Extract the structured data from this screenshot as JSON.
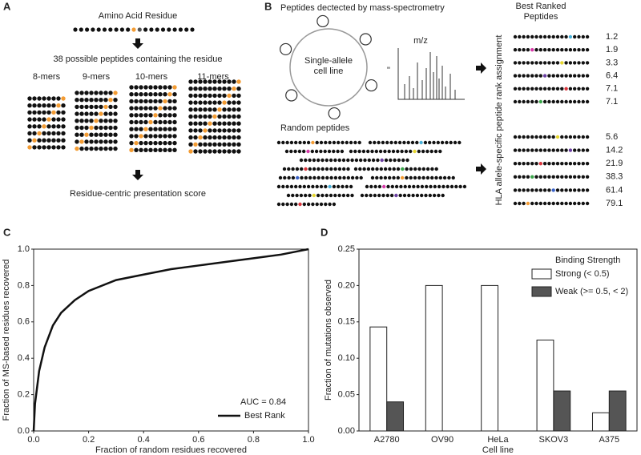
{
  "diagram": {
    "panel_a": {
      "label": "A",
      "residue_title": "Amino Acid Residue",
      "peptides_title": "38 possible peptides containing the residue",
      "mers": [
        "8-mers",
        "9-mers",
        "10-mers",
        "11-mers"
      ],
      "score_title": "Residue-centric presentation score"
    },
    "panel_b": {
      "label": "B",
      "ms_title": "Peptides dectected by mass-spectrometry",
      "cell_line": "Single-allele cell line",
      "axis_label": "m/z",
      "ranked_title": "Best Ranked Peptides",
      "rank_axis": "HLA allele-specific peptide rank assignment",
      "random_title": "Random peptides",
      "ms_ranks": [
        1.2,
        1.9,
        3.3,
        6.4,
        7.1,
        7.1
      ],
      "random_ranks": [
        5.6,
        14.2,
        21.9,
        38.3,
        61.4,
        79.1
      ]
    }
  },
  "chart_data": [
    {
      "type": "line",
      "panel_label": "C",
      "xlabel": "Fraction of random residues recovered",
      "ylabel": "Fraction of MS-based residues recovered",
      "annotation": "AUC = 0.84",
      "x": [
        0,
        0.005,
        0.02,
        0.04,
        0.07,
        0.1,
        0.15,
        0.2,
        0.3,
        0.4,
        0.5,
        0.6,
        0.7,
        0.8,
        0.9,
        1.0
      ],
      "series": [
        {
          "name": "Best Rank",
          "color": "#111111",
          "values": [
            0,
            0.15,
            0.33,
            0.46,
            0.58,
            0.65,
            0.72,
            0.77,
            0.83,
            0.86,
            0.89,
            0.91,
            0.93,
            0.95,
            0.97,
            1.0
          ]
        }
      ],
      "xlim": [
        0,
        1
      ],
      "ylim": [
        0,
        1
      ],
      "xticks": [
        {
          "value": 0,
          "label": "0.0"
        },
        0.2,
        0.4,
        0.6,
        0.8,
        {
          "value": 1,
          "label": "1.0"
        }
      ],
      "yticks": [
        {
          "value": 0,
          "label": "0.0"
        },
        0.2,
        0.4,
        0.6,
        0.8,
        {
          "value": 1,
          "label": "1.0"
        }
      ],
      "legend": "lower-right"
    },
    {
      "type": "bar",
      "panel_label": "D",
      "xlabel": "Cell line",
      "ylabel": "Fraction of mutations observed",
      "legend_title": "Binding Strength",
      "categories": [
        "A2780",
        "OV90",
        "HeLa",
        "SKOV3",
        "A375"
      ],
      "series": [
        {
          "name": "Strong (< 0.5)",
          "color": "#ffffff",
          "values": [
            0.143,
            0.2,
            0.2,
            0.125,
            0.025
          ]
        },
        {
          "name": "Weak (>= 0.5, < 2)",
          "color": "#555555",
          "values": [
            0.04,
            0,
            0,
            0.055,
            0.055
          ]
        }
      ],
      "ylim": [
        0,
        0.25
      ],
      "yticks": [
        {
          "value": 0,
          "label": "0.00"
        },
        {
          "value": 0.05,
          "label": "0.05"
        },
        {
          "value": 0.1,
          "label": "0.10"
        },
        {
          "value": 0.15,
          "label": "0.15"
        },
        {
          "value": 0.2,
          "label": "0.20"
        },
        {
          "value": 0.25,
          "label": "0.25"
        }
      ],
      "legend": "upper-right"
    }
  ]
}
